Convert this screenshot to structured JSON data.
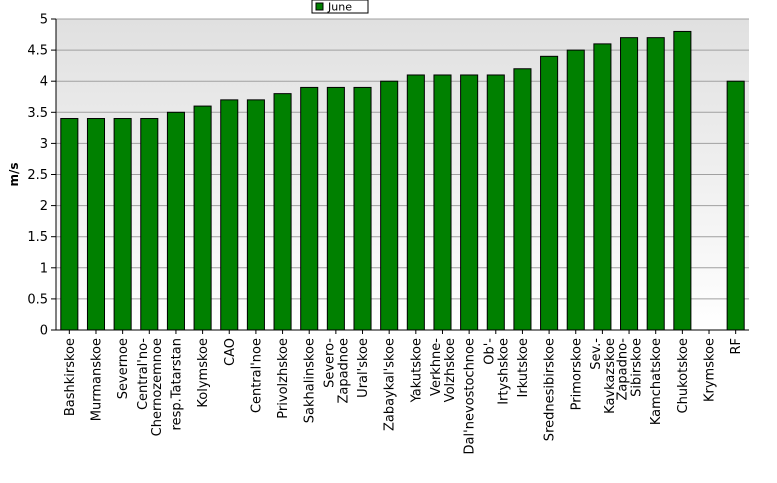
{
  "chart_data": {
    "type": "bar",
    "ylabel": "m/s",
    "ylim": [
      0,
      5
    ],
    "yticks": [
      0,
      0.5,
      1,
      1.5,
      2,
      2.5,
      3,
      3.5,
      4,
      4.5,
      5
    ],
    "grid": true,
    "legend_position": "top-center",
    "categories": [
      "Bashkirskoe",
      "Murmanskoe",
      "Severnoe",
      "Central'no-\nChernozemnoe",
      "resp.Tatarstan",
      "Kolymskoe",
      "CAO",
      "Central'noe",
      "Privolzhskoe",
      "Sakhalinskoe",
      "Severo-\nZapadnoe",
      "Ural'skoe",
      "Zabaykal'skoe",
      "Yakutskoe",
      "Verkhne-\nVolzhskoe",
      "Dal'nevostochnoe",
      "Ob'-\nIrtyshskoe",
      "Irkutskoe",
      "Srednesibirskoe",
      "Primorskoe",
      "Sev.-\nKavkazskoe",
      "Zapadno-\nSibirskoe",
      "Kamchatskoe",
      "Chukotskoe",
      "Krymskoe",
      "RF"
    ],
    "series": [
      {
        "name": "June",
        "values": [
          3.4,
          3.4,
          3.4,
          3.4,
          3.5,
          3.6,
          3.7,
          3.7,
          3.8,
          3.9,
          3.9,
          3.9,
          4.0,
          4.1,
          4.1,
          4.1,
          4.1,
          4.2,
          4.4,
          4.5,
          4.6,
          4.7,
          4.7,
          4.8,
          null,
          4.0
        ]
      }
    ]
  },
  "colors": {
    "bar_fill": "#008000",
    "bar_stroke": "#000000",
    "plot_background_top": "#e0e0e0",
    "plot_background_bottom": "#ffffff",
    "grid": "#a0a0a0"
  }
}
